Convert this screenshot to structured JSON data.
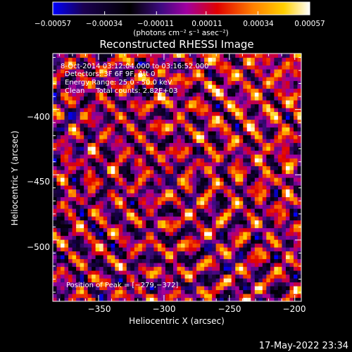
{
  "chart_data": {
    "type": "heatmap",
    "title": "Reconstructed RHESSI Image",
    "xlabel": "Heliocentric X (arcsec)",
    "ylabel": "Heliocentric Y (arcsec)",
    "xlim": [
      -385,
      -195
    ],
    "ylim": [
      -547,
      -357
    ],
    "xticks": [
      -350,
      -300,
      -250,
      -200
    ],
    "xtick_labels": [
      "−350",
      "−300",
      "−250",
      "−200"
    ],
    "yticks": [
      -400,
      -450,
      -500
    ],
    "ytick_labels": [
      "−400",
      "−450",
      "−500"
    ],
    "colorbar": {
      "range": [
        -0.00057,
        0.00057
      ],
      "ticks": [
        -0.00057,
        -0.00034,
        -0.00011,
        0.00011,
        0.00034,
        0.00057
      ],
      "tick_labels": [
        "−0.00057",
        "−0.00034",
        "−0.00011",
        "0.00011",
        "0.00034",
        "0.00057"
      ],
      "unit_label": "(photons cm⁻² s⁻¹ asec⁻²)",
      "colormap": [
        "#0000ff",
        "#1a0040",
        "#000000",
        "#3d0a80",
        "#a000a0",
        "#e00000",
        "#ff8000",
        "#ffd000",
        "#ffffff"
      ]
    },
    "annotations": [
      "8-Oct-2014 03:12:04.000 to 03:16:52.000",
      "Detectors: 3F 6F 9F, Att 0",
      "Energy Range: 25.0 - 50.0 keV",
      "Clean     Total counts: 2.82E+03"
    ],
    "peak_label": "Position of Peak = [−279,−372]",
    "peak": [
      -279,
      -372
    ]
  },
  "footer": {
    "timestamp": "17-May-2022 23:34"
  }
}
